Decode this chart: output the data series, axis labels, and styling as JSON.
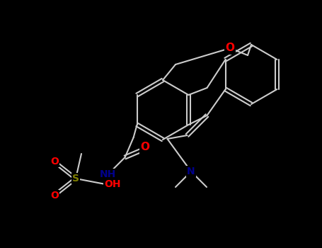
{
  "background_color": "#000000",
  "bond_color": "#cccccc",
  "atom_colors": {
    "O": "#ff0000",
    "N": "#00008b",
    "S": "#808000",
    "C": "#cccccc",
    "H": "#cccccc"
  },
  "figsize": [
    4.55,
    3.5
  ],
  "dpi": 100
}
